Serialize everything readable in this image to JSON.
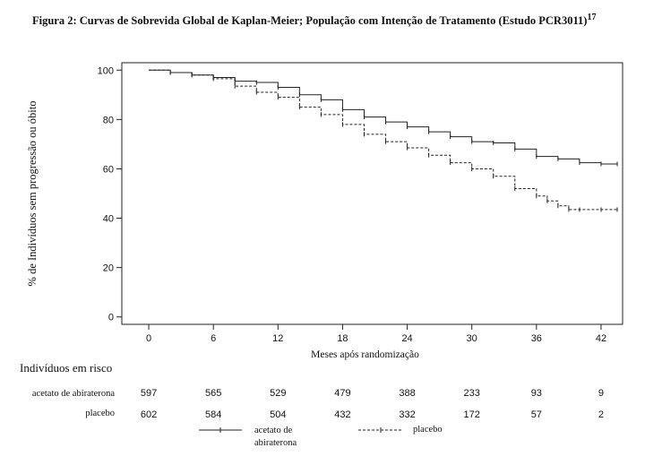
{
  "figure_title": "Figura 2: Curvas de Sobrevida Global de Kaplan-Meier; População com Intenção de Tratamento (Estudo PCR3011)",
  "figure_ref": "17",
  "risk_table": {
    "title": "Indivíduos em risco",
    "rows": [
      {
        "name": "acetato de abiraterona",
        "values": [
          597,
          565,
          529,
          479,
          388,
          233,
          93,
          9
        ]
      },
      {
        "name": "placebo",
        "values": [
          602,
          584,
          504,
          432,
          332,
          172,
          57,
          2
        ]
      }
    ]
  },
  "legend": {
    "abiraterone": "acetato de abiraterona",
    "placebo": "placebo"
  },
  "chart_data": {
    "type": "line",
    "title": "",
    "xlabel": "Meses após randomização",
    "ylabel": "% de Indivíduos sem progressão ou óbito",
    "xticks": [
      0,
      6,
      12,
      18,
      24,
      30,
      36,
      42
    ],
    "yticks": [
      0,
      20,
      40,
      60,
      80,
      100
    ],
    "xlim": [
      -2.5,
      44
    ],
    "ylim": [
      -3,
      103
    ],
    "legend_position": "bottom",
    "series": [
      {
        "name": "acetato de abiraterona",
        "style": "solid",
        "x": [
          0,
          2,
          4,
          6,
          8,
          10,
          12,
          14,
          16,
          18,
          20,
          22,
          24,
          26,
          28,
          30,
          32,
          34,
          36,
          38,
          40,
          42,
          43.5
        ],
        "y": [
          100,
          99,
          98,
          97,
          95.5,
          95,
          93,
          90,
          88,
          84,
          81,
          79,
          77,
          75,
          73,
          71,
          70.5,
          68,
          65,
          64,
          62.5,
          62,
          62
        ]
      },
      {
        "name": "placebo",
        "style": "dashed",
        "x": [
          0,
          2,
          4,
          6,
          8,
          10,
          12,
          14,
          16,
          18,
          20,
          22,
          24,
          26,
          28,
          30,
          32,
          34,
          36,
          37,
          38,
          39,
          40,
          42,
          43.5
        ],
        "y": [
          100,
          99,
          98,
          96.5,
          93.5,
          91,
          89,
          85,
          82,
          78,
          74,
          71,
          68.5,
          65.5,
          62.5,
          60,
          57,
          52,
          49,
          47,
          45,
          43.5,
          43.5,
          43.5,
          43.5
        ]
      }
    ]
  }
}
